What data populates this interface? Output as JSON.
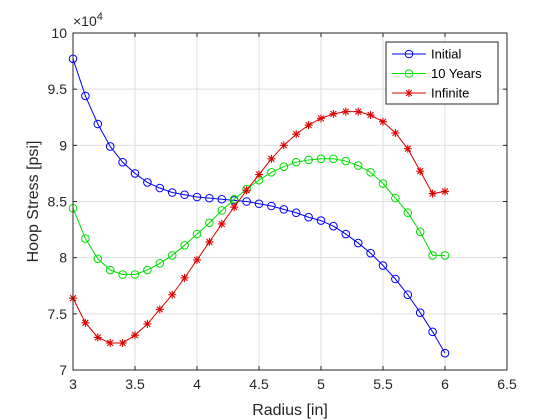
{
  "chart_data": {
    "type": "line",
    "title": "",
    "xlabel": "Radius [in]",
    "ylabel": "Hoop Stress [psi]",
    "y_exponent_label": "×10",
    "y_exponent_power": "4",
    "xlim": [
      3,
      6.5
    ],
    "ylim": [
      7,
      10
    ],
    "x_ticks": [
      "3",
      "3.5",
      "4",
      "4.5",
      "5",
      "5.5",
      "6",
      "6.5"
    ],
    "y_ticks": [
      "7",
      "7.5",
      "8",
      "8.5",
      "9",
      "9.5",
      "10"
    ],
    "x_tick_values": [
      3,
      3.5,
      4,
      4.5,
      5,
      5.5,
      6,
      6.5
    ],
    "y_tick_values": [
      7,
      7.5,
      8,
      8.5,
      9,
      9.5,
      10
    ],
    "grid": true,
    "legend_position": "top-right",
    "x": [
      3.0,
      3.1,
      3.2,
      3.3,
      3.4,
      3.5,
      3.6,
      3.7,
      3.8,
      3.9,
      4.0,
      4.1,
      4.2,
      4.3,
      4.4,
      4.5,
      4.6,
      4.7,
      4.8,
      4.9,
      5.0,
      5.1,
      5.2,
      5.3,
      5.4,
      5.5,
      5.6,
      5.7,
      5.8,
      5.9,
      6.0
    ],
    "series": [
      {
        "name": "Initial",
        "color": "#0000ff",
        "marker": "circle",
        "values": [
          9.77,
          9.44,
          9.19,
          8.99,
          8.85,
          8.75,
          8.67,
          8.62,
          8.58,
          8.56,
          8.54,
          8.53,
          8.52,
          8.51,
          8.5,
          8.48,
          8.46,
          8.43,
          8.4,
          8.36,
          8.33,
          8.28,
          8.21,
          8.13,
          8.04,
          7.93,
          7.81,
          7.67,
          7.51,
          7.34,
          7.15
        ]
      },
      {
        "name": "10 Years",
        "color": "#00dd00",
        "marker": "circle",
        "values": [
          8.44,
          8.17,
          7.99,
          7.89,
          7.85,
          7.85,
          7.89,
          7.95,
          8.02,
          8.11,
          8.21,
          8.31,
          8.42,
          8.52,
          8.61,
          8.69,
          8.76,
          8.81,
          8.85,
          8.87,
          8.88,
          8.88,
          8.86,
          8.82,
          8.76,
          8.66,
          8.53,
          8.4,
          8.23,
          8.02,
          8.02
        ]
      },
      {
        "name": "Infinite",
        "color": "#dd0000",
        "marker": "asterisk",
        "values": [
          7.64,
          7.42,
          7.29,
          7.24,
          7.24,
          7.31,
          7.41,
          7.54,
          7.67,
          7.82,
          7.98,
          8.14,
          8.3,
          8.45,
          8.6,
          8.74,
          8.88,
          9.0,
          9.1,
          9.18,
          9.24,
          9.28,
          9.3,
          9.3,
          9.27,
          9.21,
          9.11,
          8.97,
          8.77,
          8.57,
          8.59
        ]
      }
    ]
  }
}
